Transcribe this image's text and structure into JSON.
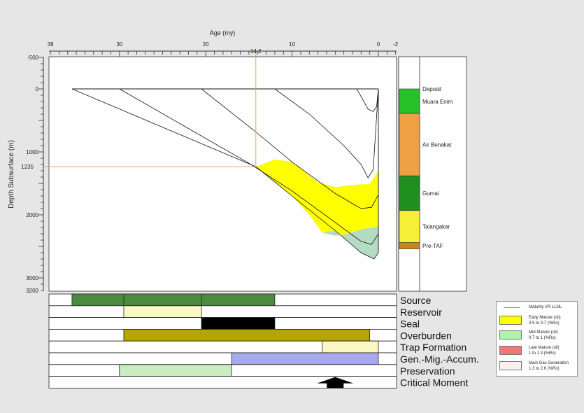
{
  "chart_data": {
    "type": "area",
    "title": "",
    "xlabel": "Age (my)",
    "ylabel": "Depth Subsurface (m)",
    "x_ticks": [
      "38",
      "30",
      "20",
      "10",
      "0",
      "-2"
    ],
    "y_ticks": [
      "-500",
      "0",
      "1000",
      "2000",
      "3000",
      "3200"
    ],
    "marker": {
      "age_label": "14.2",
      "depth_label": "1235"
    },
    "xlim": [
      38,
      -2
    ],
    "ylim": [
      -500,
      3200
    ],
    "horizons": [
      {
        "ages": [
          35.5,
          14.2,
          10,
          5,
          2,
          0.5,
          0
        ],
        "depths": [
          0,
          1235,
          1700,
          2250,
          2600,
          2700,
          2600
        ]
      },
      {
        "ages": [
          30,
          15,
          10,
          5,
          2,
          0.8,
          0
        ],
        "depths": [
          0,
          1180,
          1620,
          2120,
          2420,
          2470,
          2300
        ]
      },
      {
        "ages": [
          20.5,
          14.5,
          10,
          5,
          2,
          0.8,
          0
        ],
        "depths": [
          0,
          650,
          1160,
          1660,
          1900,
          1880,
          1680
        ]
      },
      {
        "ages": [
          12,
          8,
          4,
          2,
          1.2,
          0.6,
          0
        ],
        "depths": [
          0,
          400,
          900,
          1200,
          1410,
          1280,
          0
        ]
      },
      {
        "ages": [
          2.5,
          1.2,
          0.6,
          0.2,
          0
        ],
        "depths": [
          0,
          320,
          360,
          280,
          0
        ]
      }
    ],
    "early_mature_zone": {
      "top": [
        [
          14.2,
          1235
        ],
        [
          12,
          1120
        ],
        [
          10,
          1160
        ],
        [
          7,
          1480
        ],
        [
          5,
          1560
        ],
        [
          4,
          1540
        ],
        [
          2.5,
          1520
        ],
        [
          1,
          1510
        ],
        [
          0,
          1300
        ]
      ],
      "bottom": [
        [
          0,
          2180
        ],
        [
          2,
          2230
        ],
        [
          3.5,
          2300
        ],
        [
          5,
          2330
        ],
        [
          6.5,
          2280
        ],
        [
          8,
          2000
        ],
        [
          10,
          1700
        ],
        [
          14.2,
          1235
        ]
      ]
    },
    "mid_mature_zone": {
      "top": [
        [
          6.5,
          2280
        ],
        [
          5,
          2330
        ],
        [
          3.5,
          2300
        ],
        [
          2,
          2230
        ],
        [
          0,
          2180
        ]
      ],
      "bottom": [
        [
          0,
          2600
        ],
        [
          0.5,
          2700
        ],
        [
          2,
          2600
        ],
        [
          5,
          2250
        ],
        [
          6.5,
          2280
        ]
      ]
    },
    "stratigraphy": [
      {
        "name": "Deposit",
        "top": 0,
        "bottom": 0,
        "color": "#ffffff"
      },
      {
        "name": "Muara Enim",
        "top": 0,
        "bottom": 390,
        "color": "#27c227"
      },
      {
        "name": "Air Benakat",
        "top": 390,
        "bottom": 1380,
        "color": "#efa042"
      },
      {
        "name": "Gumai",
        "top": 1380,
        "bottom": 1930,
        "color": "#1f8f1f"
      },
      {
        "name": "Talangakar",
        "top": 1930,
        "bottom": 2440,
        "color": "#f6ef38"
      },
      {
        "name": "Pre-TAF",
        "top": 2440,
        "bottom": 2540,
        "color": "#c98426"
      }
    ],
    "events": [
      {
        "name": "Source",
        "start": 35.5,
        "end": 12,
        "fill": "#4a8b3f",
        "segment_breaks": [
          29.5,
          20.5
        ]
      },
      {
        "name": "Reservoir",
        "start": 29.5,
        "end": 20.5,
        "fill": "#fbf8c4",
        "segment_breaks": []
      },
      {
        "name": "Seal",
        "start": 20.5,
        "end": 12,
        "fill": "#000000",
        "segment_breaks": []
      },
      {
        "name": "Overburden",
        "start": 29.5,
        "end": 1,
        "fill": "#b5a500",
        "segment_breaks": []
      },
      {
        "name": "Trap Formation",
        "start": 6.5,
        "end": 0,
        "fill": "#fbf8c4",
        "segment_breaks": []
      },
      {
        "name": "Gen.-Mig.-Accum.",
        "start": 17,
        "end": 0,
        "fill": "#a8a8ee",
        "segment_breaks": []
      },
      {
        "name": "Preservation",
        "start": 30,
        "end": 17,
        "fill": "#c9ecc0",
        "segment_breaks": []
      },
      {
        "name": "Critical Moment",
        "start": null,
        "end": null,
        "fill": null,
        "segment_breaks": [],
        "arrow_age": 5
      }
    ]
  },
  "legend": {
    "items": [
      {
        "label": "Maturity VR LLNL",
        "sub": "",
        "color": "#d060d0",
        "kind": "line"
      },
      {
        "label": "Early Mature (oil)",
        "sub": "0.5 to 0.7 (%Ro)",
        "color": "#ffff00",
        "kind": "box"
      },
      {
        "label": "Mid Mature (oil)",
        "sub": "0.7 to 1 (%Ro)",
        "color": "#aaf5aa",
        "kind": "box"
      },
      {
        "label": "Late Mature (oil)",
        "sub": "1 to 1.3 (%Ro)",
        "color": "#f07878",
        "kind": "box"
      },
      {
        "label": "Main Gas Generation",
        "sub": "1.3 to 2.6 (%Ro)",
        "color": "#fdeef0",
        "kind": "box"
      }
    ]
  }
}
